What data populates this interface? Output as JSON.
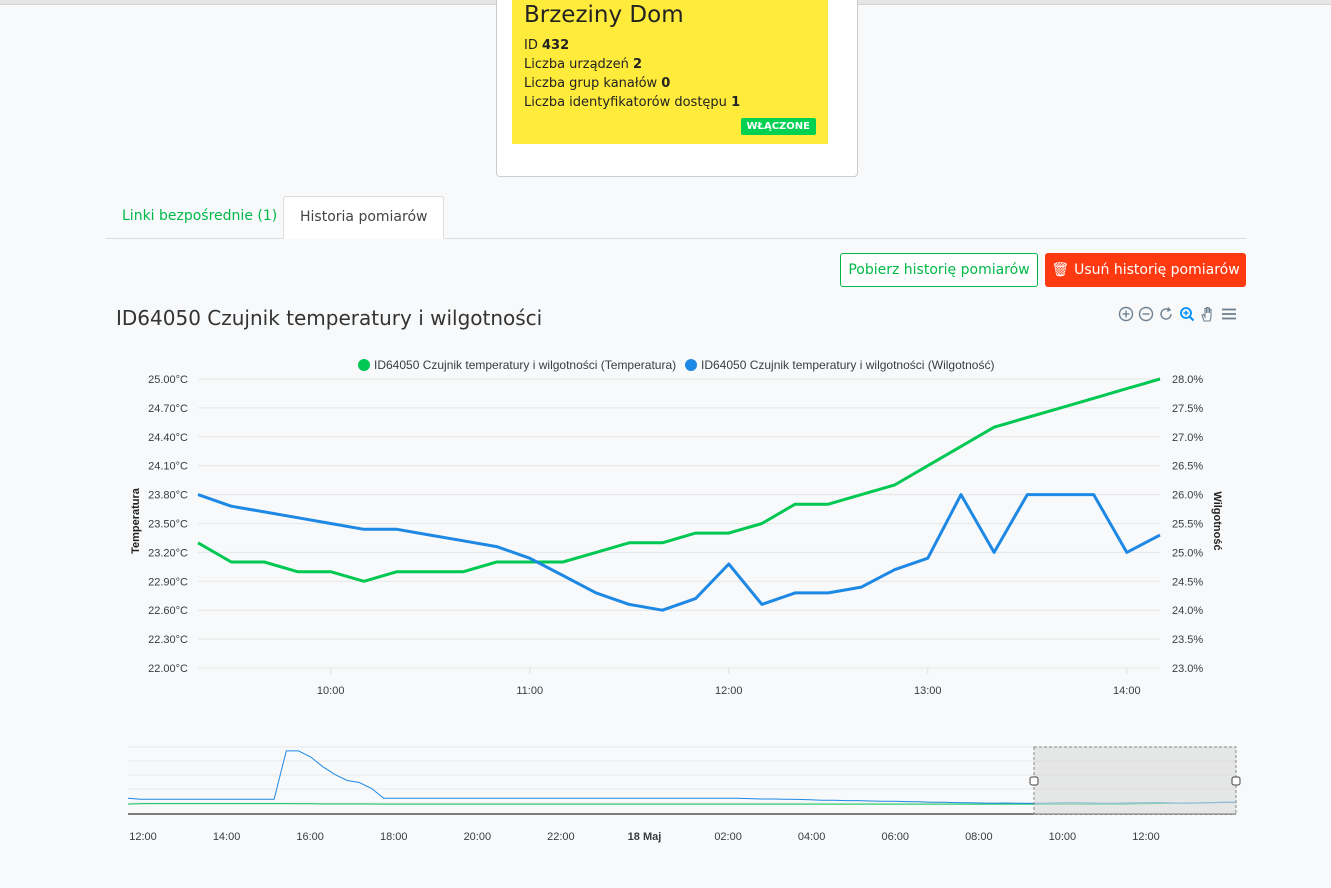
{
  "location": {
    "title": "Brzeziny Dom",
    "id_label": "ID",
    "id_value": "432",
    "devices_label": "Liczba urządzeń",
    "devices_value": "2",
    "channel_groups_label": "Liczba grup kanałów",
    "channel_groups_value": "0",
    "access_ids_label": "Liczba identyfikatorów dostępu",
    "access_ids_value": "1",
    "status": "WŁĄCZONE",
    "color": "#ffeb3b"
  },
  "tabs": [
    {
      "label": "Linki bezpośrednie (1)"
    },
    {
      "label": "Historia pomiarów"
    }
  ],
  "actions": {
    "download_label": "Pobierz historię pomiarów",
    "delete_label": "Usuń historię pomiarów"
  },
  "toolbar_icons": [
    "zoom-in-icon",
    "zoom-out-icon",
    "reset-icon",
    "selection-zoom-icon",
    "pan-hand-icon",
    "menu-icon"
  ],
  "chart_data": {
    "type": "line",
    "title": "ID64050 Czujnik temperatury i wilgotności",
    "legend_position": "top",
    "x": [
      "09:20",
      "09:30",
      "09:40",
      "09:50",
      "10:00",
      "10:10",
      "10:20",
      "10:30",
      "10:40",
      "10:50",
      "11:00",
      "11:10",
      "11:20",
      "11:30",
      "11:40",
      "11:50",
      "12:00",
      "12:10",
      "12:20",
      "12:30",
      "12:40",
      "12:50",
      "13:00",
      "13:10",
      "13:20",
      "13:30",
      "13:40",
      "13:50",
      "14:00",
      "14:10"
    ],
    "x_ticks": [
      "10:00",
      "11:00",
      "12:00",
      "13:00",
      "14:00"
    ],
    "series": [
      {
        "name": "ID64050 Czujnik temperatury i wilgotności (Temperatura)",
        "color": "#00c853",
        "axis": "left",
        "values": [
          23.3,
          23.1,
          23.1,
          23.0,
          23.0,
          22.9,
          23.0,
          23.0,
          23.0,
          23.1,
          23.1,
          23.1,
          23.2,
          23.3,
          23.3,
          23.4,
          23.4,
          23.5,
          23.7,
          23.7,
          23.8,
          23.9,
          24.1,
          24.3,
          24.5,
          24.6,
          24.7,
          24.8,
          24.9,
          25.0
        ]
      },
      {
        "name": "ID64050 Czujnik temperatury i wilgotności (Wilgotność)",
        "color": "#1e88e5",
        "axis": "right",
        "values": [
          26.0,
          25.8,
          25.7,
          25.6,
          25.5,
          25.4,
          25.4,
          25.3,
          25.2,
          25.1,
          24.9,
          24.6,
          24.3,
          24.1,
          24.0,
          24.2,
          24.8,
          24.1,
          24.3,
          24.3,
          24.4,
          24.7,
          24.9,
          26.0,
          25.0,
          26.0,
          26.0,
          26.0,
          25.0,
          25.3
        ]
      }
    ],
    "y_left": {
      "label": "Temperatura",
      "min": 22.0,
      "max": 25.0,
      "ticks": [
        "22.00°C",
        "22.30°C",
        "22.60°C",
        "22.90°C",
        "23.20°C",
        "23.50°C",
        "23.80°C",
        "24.10°C",
        "24.40°C",
        "24.70°C",
        "25.00°C"
      ]
    },
    "y_right": {
      "label": "Wilgotność",
      "min": 23.0,
      "max": 28.0,
      "ticks": [
        "23.0%",
        "23.5%",
        "24.0%",
        "24.5%",
        "25.0%",
        "25.5%",
        "26.0%",
        "26.5%",
        "27.0%",
        "27.5%",
        "28.0%"
      ]
    },
    "navigator": {
      "x_ticks": [
        "12:00",
        "14:00",
        "16:00",
        "18:00",
        "20:00",
        "22:00",
        "18 Maj",
        "02:00",
        "04:00",
        "06:00",
        "08:00",
        "10:00",
        "12:00"
      ],
      "humidity": [
        36,
        35.5,
        35.5,
        35.5,
        35.5,
        35.5,
        35.5,
        35.5,
        35.5,
        35.5,
        35.5,
        35.5,
        35.5,
        60,
        60,
        57,
        52,
        48,
        45,
        44,
        41,
        36,
        36,
        36,
        36,
        36,
        36,
        36,
        36,
        36,
        36,
        36,
        36,
        36,
        36,
        36,
        36,
        36,
        36,
        36,
        36,
        36,
        36,
        36,
        36,
        36,
        36,
        36,
        36,
        36,
        36,
        35.8,
        35.6,
        35.6,
        35.5,
        35.4,
        35.2,
        35,
        35,
        34.8,
        34.8,
        34.6,
        34.5,
        34.5,
        34.3,
        34.2,
        34,
        34,
        33.8,
        33.7,
        33.6,
        33.5,
        33.6,
        33.5,
        33.4,
        33.5,
        33.6,
        33.7,
        33.7,
        33.6,
        33.5,
        33.5,
        33.6,
        33.7,
        33.8,
        33.8,
        33.6,
        33.5,
        33.6,
        33.7,
        34,
        34
      ],
      "temperature": [
        33,
        33.2,
        33.3,
        33.3,
        33.3,
        33.3,
        33.3,
        33.3,
        33.3,
        33.3,
        33.3,
        33.3,
        33.3,
        33.3,
        33.2,
        33.2,
        33.1,
        33.1,
        33.1,
        33.1,
        33.1,
        33,
        33,
        33,
        33,
        33,
        33,
        33,
        33,
        33,
        33,
        33,
        33,
        33,
        33,
        33,
        33,
        33,
        33,
        33,
        33,
        33,
        33,
        33,
        33,
        33,
        33,
        33,
        33,
        33,
        33,
        33,
        33,
        33,
        33,
        33,
        33,
        33,
        33,
        33,
        33,
        33,
        33,
        33,
        33,
        33,
        33,
        33,
        33,
        33,
        33,
        33,
        33,
        33,
        33,
        33,
        33,
        33,
        33,
        33,
        33,
        33,
        33,
        33.2,
        33.3,
        33.4,
        33.5,
        33.6,
        33.7,
        33.8,
        34,
        34
      ]
    }
  }
}
